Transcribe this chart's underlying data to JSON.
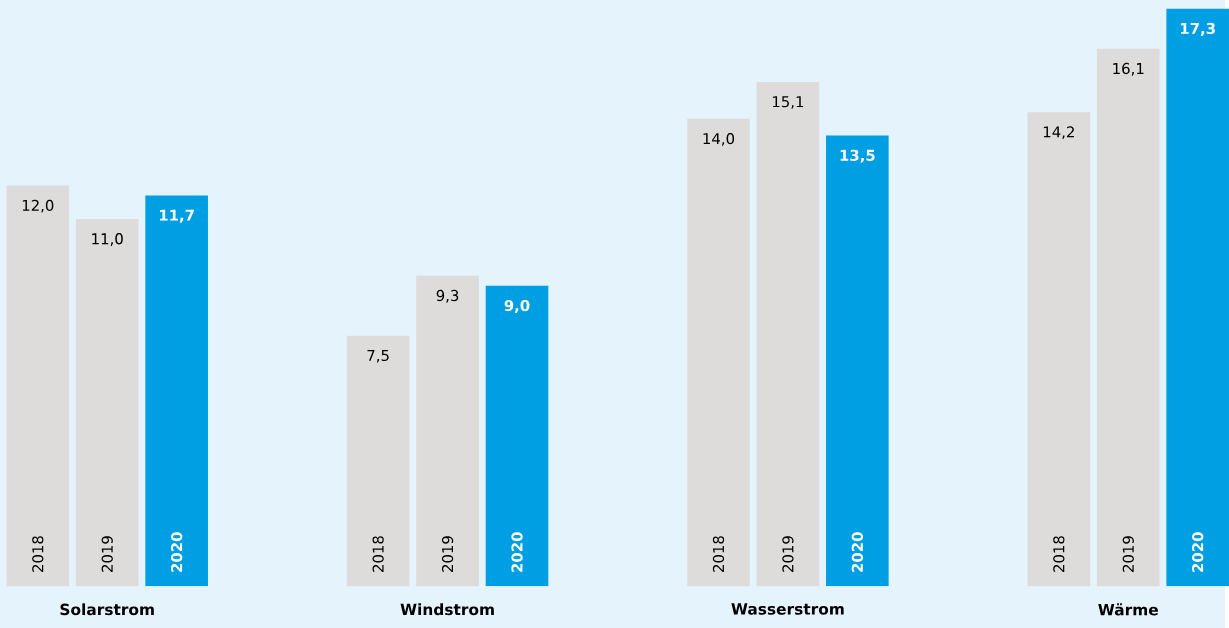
{
  "chart_data": {
    "type": "bar",
    "categories": [
      "Solarstrom",
      "Windstrom",
      "Wasserstrom",
      "Wärme"
    ],
    "series": [
      {
        "name": "2018",
        "color": "#dddcdb",
        "values": [
          12.0,
          7.5,
          14.0,
          14.2
        ],
        "value_labels": [
          "12,0",
          "7,5",
          "14,0",
          "14,2"
        ]
      },
      {
        "name": "2019",
        "color": "#dddcdb",
        "values": [
          11.0,
          9.3,
          15.1,
          16.1
        ],
        "value_labels": [
          "11,0",
          "9,3",
          "15,1",
          "16,1"
        ]
      },
      {
        "name": "2020",
        "color": "#009fe3",
        "values": [
          11.7,
          9.0,
          13.5,
          17.3
        ],
        "value_labels": [
          "11,7",
          "9,0",
          "13,5",
          "17,3"
        ]
      }
    ]
  }
}
